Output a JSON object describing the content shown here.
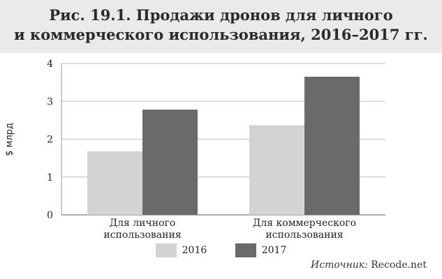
{
  "title_lines": [
    "Рис. 19.1. Продажи дронов для личного",
    "и коммерческого использования, 2016–2017 гг."
  ],
  "source": {
    "label": "Источник:",
    "value": "Recode.net"
  },
  "chart_data": {
    "type": "bar",
    "ylabel": "$ млрд",
    "xlabel": "",
    "ylim": [
      0,
      4
    ],
    "yticks": [
      0,
      1,
      2,
      3,
      4
    ],
    "grid": true,
    "legend_position": "bottom",
    "categories": [
      [
        "Для личного",
        "использования"
      ],
      [
        "Для коммерческого",
        "использования"
      ]
    ],
    "series": [
      {
        "name": "2016",
        "values": [
          1.68,
          2.37
        ],
        "color": "#d3d3d3"
      },
      {
        "name": "2017",
        "values": [
          2.78,
          3.65
        ],
        "color": "#6a6a6a"
      }
    ]
  }
}
